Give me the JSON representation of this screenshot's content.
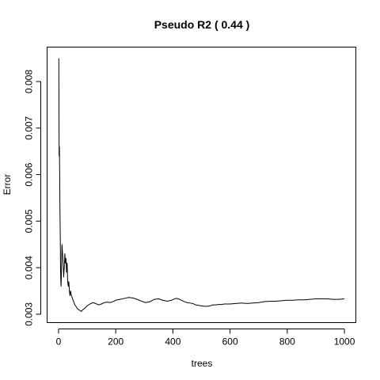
{
  "chart_data": {
    "type": "line",
    "title": "Pseudo R2 ( 0.44 )",
    "xlabel": "trees",
    "ylabel": "Error",
    "xlim": [
      0,
      1000
    ],
    "ylim": [
      0.0031,
      0.0085
    ],
    "x_ticks": [
      0,
      200,
      400,
      600,
      800,
      1000
    ],
    "x_tick_labels": [
      "0",
      "200",
      "400",
      "600",
      "800",
      "1000"
    ],
    "y_ticks": [
      0.003,
      0.004,
      0.005,
      0.006,
      0.007,
      0.008
    ],
    "y_tick_labels": [
      "0.003",
      "0.004",
      "0.005",
      "0.006",
      "0.007",
      "0.008"
    ],
    "grid": false,
    "legend": "none",
    "series": [
      {
        "color": "#000000",
        "x": [
          1,
          2,
          3,
          4,
          5,
          6,
          7,
          8,
          9,
          10,
          12,
          14,
          16,
          18,
          20,
          22,
          24,
          26,
          28,
          30,
          32,
          34,
          36,
          38,
          40,
          42,
          45,
          48,
          51,
          54,
          57,
          60,
          63,
          66,
          70,
          75,
          80,
          85,
          90,
          95,
          100,
          110,
          120,
          130,
          140,
          150,
          160,
          170,
          180,
          190,
          200,
          215,
          230,
          245,
          260,
          275,
          290,
          305,
          320,
          335,
          350,
          365,
          380,
          395,
          410,
          420,
          430,
          440,
          450,
          460,
          470,
          480,
          490,
          500,
          510,
          520,
          530,
          540,
          550,
          560,
          570,
          580,
          590,
          600,
          620,
          640,
          660,
          680,
          700,
          720,
          740,
          760,
          780,
          800,
          820,
          840,
          860,
          880,
          900,
          920,
          940,
          960,
          980,
          1000
        ],
        "values": [
          0.0085,
          0.0064,
          0.0066,
          0.006,
          0.0052,
          0.0047,
          0.004,
          0.0037,
          0.0036,
          0.0039,
          0.0045,
          0.0043,
          0.0041,
          0.0038,
          0.004,
          0.0043,
          0.0041,
          0.0042,
          0.0039,
          0.0041,
          0.0037,
          0.0036,
          0.0037,
          0.0035,
          0.0034,
          0.0035,
          0.0034,
          0.00335,
          0.0033,
          0.00325,
          0.0032,
          0.00318,
          0.00315,
          0.00312,
          0.0031,
          0.00308,
          0.00306,
          0.0031,
          0.00312,
          0.00315,
          0.00318,
          0.00322,
          0.00325,
          0.00323,
          0.0032,
          0.00322,
          0.00325,
          0.00326,
          0.00325,
          0.00327,
          0.0033,
          0.00332,
          0.00334,
          0.00336,
          0.00335,
          0.00332,
          0.00328,
          0.00325,
          0.00327,
          0.00332,
          0.00333,
          0.0033,
          0.00328,
          0.0033,
          0.00334,
          0.00333,
          0.0033,
          0.00327,
          0.00325,
          0.00324,
          0.00323,
          0.0032,
          0.00319,
          0.00318,
          0.00317,
          0.00317,
          0.00318,
          0.0032,
          0.0032,
          0.00321,
          0.00321,
          0.00322,
          0.00322,
          0.00322,
          0.00323,
          0.00324,
          0.00323,
          0.00324,
          0.00325,
          0.00327,
          0.00328,
          0.00328,
          0.00329,
          0.0033,
          0.0033,
          0.00331,
          0.00331,
          0.00332,
          0.00333,
          0.00333,
          0.00333,
          0.00332,
          0.00332,
          0.00333
        ]
      }
    ]
  }
}
